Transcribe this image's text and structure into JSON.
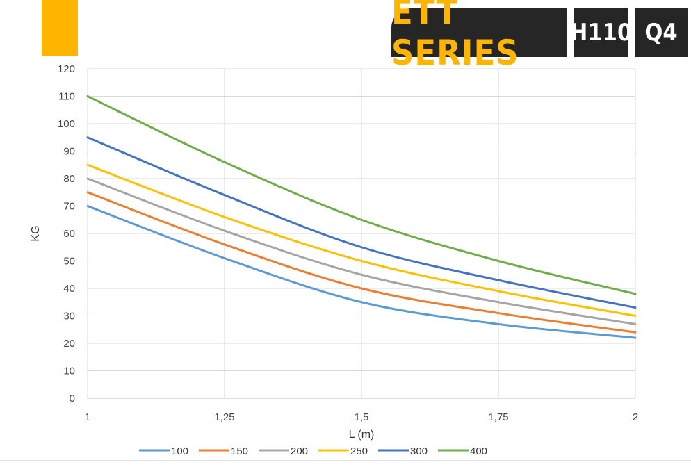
{
  "header": {
    "series_label": "ETT SERIES",
    "model_label": "H110",
    "quality_label": "Q4",
    "accent_color": "#ffb400",
    "badge_color": "#262626"
  },
  "chart_data": {
    "type": "line",
    "title": "",
    "xlabel": "L (m)",
    "ylabel": "KG",
    "x": [
      1,
      1.25,
      1.5,
      1.75,
      2
    ],
    "x_tick_labels": [
      "1",
      "1,25",
      "1,5",
      "1,75",
      "2"
    ],
    "xlim": [
      1,
      2
    ],
    "ylim": [
      0,
      120
    ],
    "y_ticks": [
      0,
      10,
      20,
      30,
      40,
      50,
      60,
      70,
      80,
      90,
      100,
      110,
      120
    ],
    "grid": true,
    "legend_position": "bottom",
    "series": [
      {
        "name": "100",
        "color": "#5b9bd5",
        "values": [
          70,
          51,
          35,
          27,
          22
        ]
      },
      {
        "name": "150",
        "color": "#ed7d31",
        "values": [
          75,
          56,
          40,
          31,
          24
        ]
      },
      {
        "name": "200",
        "color": "#a5a5a5",
        "values": [
          80,
          61,
          45,
          35,
          27
        ]
      },
      {
        "name": "250",
        "color": "#ffc000",
        "values": [
          85,
          66,
          50,
          39,
          30
        ]
      },
      {
        "name": "300",
        "color": "#4472c4",
        "values": [
          95,
          74,
          55,
          43,
          33
        ]
      },
      {
        "name": "400",
        "color": "#70ad47",
        "values": [
          110,
          86,
          65,
          50,
          38
        ]
      }
    ]
  }
}
